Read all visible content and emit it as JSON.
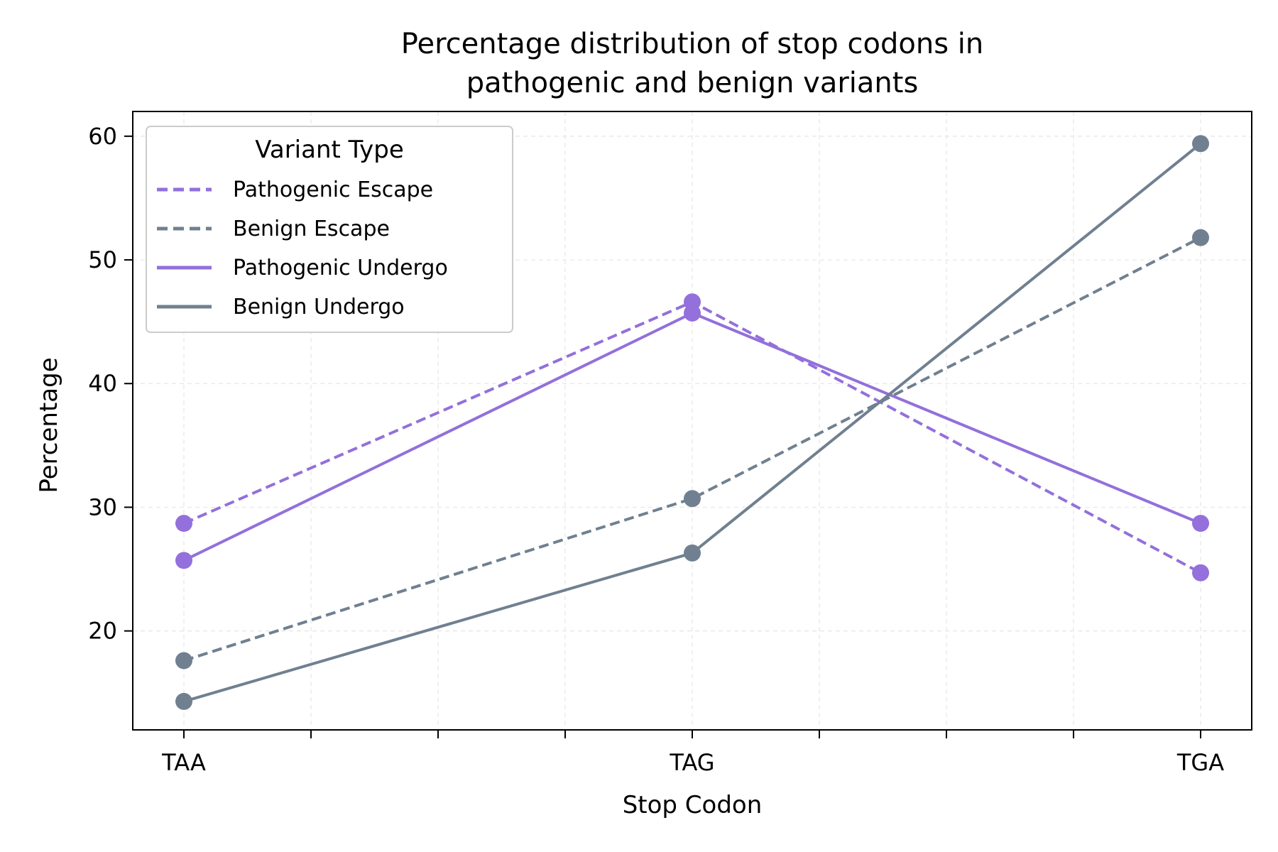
{
  "chart_data": {
    "type": "line",
    "title": [
      "Percentage distribution of stop codons in",
      "pathogenic and benign variants"
    ],
    "xlabel": "Stop Codon",
    "ylabel": "Percentage",
    "categories": [
      "TAA",
      "TAG",
      "TGA"
    ],
    "ylim": [
      12.0,
      62.0
    ],
    "yticks": [
      20,
      30,
      40,
      50,
      60
    ],
    "grid": true,
    "legend": {
      "title": "Variant Type",
      "placement": "top-left"
    },
    "series": [
      {
        "name": "Pathogenic Escape",
        "values": [
          28.7,
          46.6,
          24.7
        ],
        "color": "#9370db",
        "style": "dashed"
      },
      {
        "name": "Benign Escape",
        "values": [
          17.6,
          30.7,
          51.8
        ],
        "color": "#708090",
        "style": "dashed"
      },
      {
        "name": "Pathogenic Undergo",
        "values": [
          25.7,
          45.7,
          28.7
        ],
        "color": "#9370db",
        "style": "solid"
      },
      {
        "name": "Benign Undergo",
        "values": [
          14.3,
          26.3,
          59.4
        ],
        "color": "#708090",
        "style": "solid"
      }
    ]
  }
}
